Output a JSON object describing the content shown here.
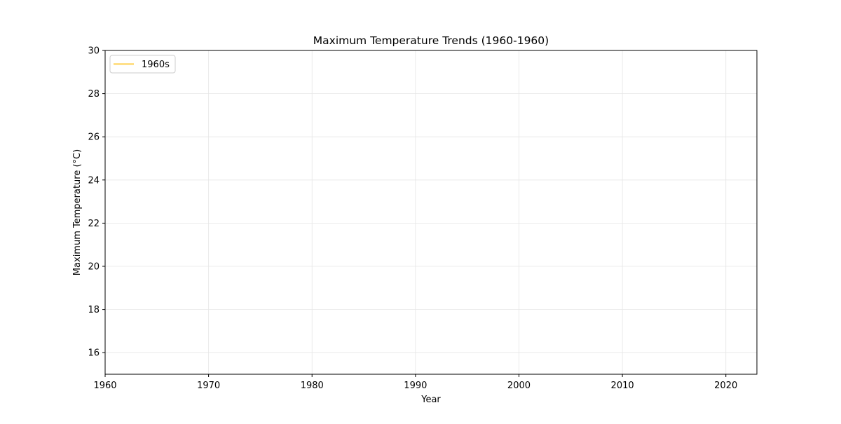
{
  "chart_data": {
    "type": "line",
    "title": "Maximum Temperature Trends (1960-1960)",
    "xlabel": "Year",
    "ylabel": "Maximum Temperature (°C)",
    "xlim": [
      1960,
      2023
    ],
    "ylim": [
      15,
      30
    ],
    "xticks": [
      1960,
      1970,
      1980,
      1990,
      2000,
      2010,
      2020
    ],
    "yticks": [
      16,
      18,
      20,
      22,
      24,
      26,
      28,
      30
    ],
    "grid": true,
    "legend": {
      "placement": "top-left"
    },
    "series": [
      {
        "name": "1960s",
        "color": "#ffe08a",
        "x": [],
        "y": []
      }
    ]
  }
}
